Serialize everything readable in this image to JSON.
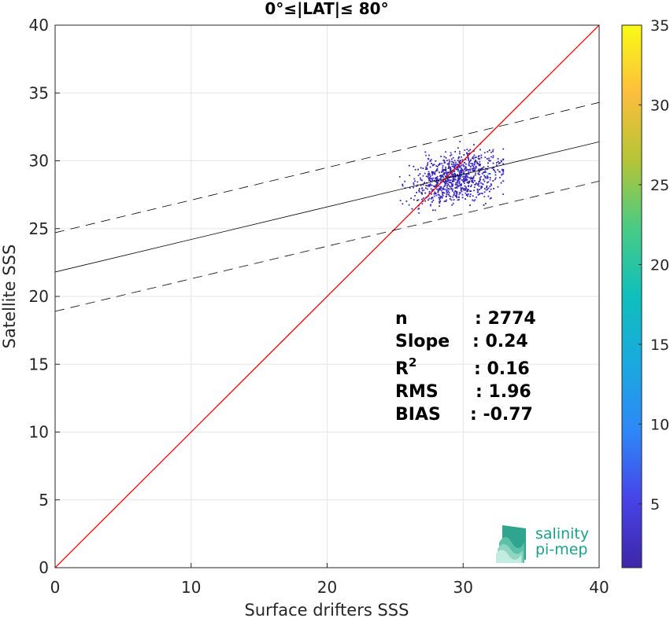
{
  "chart_data": {
    "type": "scatter",
    "title": "0°≤|LAT|≤ 80°",
    "xlabel": "Surface drifters SSS",
    "ylabel": "Satellite SSS",
    "xlim": [
      0,
      40
    ],
    "ylim": [
      0,
      40
    ],
    "xticks": [
      "0",
      "10",
      "20",
      "30",
      "40"
    ],
    "yticks": [
      "0",
      "5",
      "10",
      "15",
      "20",
      "25",
      "30",
      "35",
      "40"
    ],
    "grid": true,
    "colorbar": {
      "range": [
        1,
        35
      ],
      "ticks": [
        "5",
        "10",
        "15",
        "20",
        "25",
        "30",
        "35"
      ],
      "colormap": "parula"
    },
    "reference_line": {
      "slope": 1,
      "intercept": 0,
      "color": "#ff0000"
    },
    "regression_line": {
      "slope": 0.24,
      "intercept": 21.8,
      "color": "#000000"
    },
    "confidence_band": {
      "offset": 2.9,
      "style": "dashed"
    },
    "density_cloud": {
      "x_center": 29.5,
      "y_center": 28.8,
      "x_range": [
        23.2,
        32.9
      ],
      "y_range": [
        26.2,
        32.6
      ],
      "n": 2774
    },
    "stats": [
      {
        "label": "n",
        "value": ": 2774"
      },
      {
        "label": "Slope",
        "value": ": 0.24"
      },
      {
        "label": "R2",
        "value": ": 0.16"
      },
      {
        "label": "RMS",
        "value": ": 1.96"
      },
      {
        "label": "BIAS",
        "value": ": -0.77"
      }
    ],
    "legend": "none"
  },
  "logo": {
    "line1": "salinity",
    "line2": "pi-mep"
  },
  "colors": {
    "reference": "#ff0000",
    "fit": "#000000",
    "points_low": "#3e26a8",
    "points_mid": "#2e87f7",
    "points_high": "#f9fb15",
    "logo": "#1aa08e"
  }
}
